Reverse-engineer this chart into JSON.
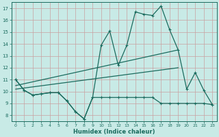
{
  "xlabel": "Humidex (Indice chaleur)",
  "bg_color": "#c8eae6",
  "grid_color": "#c8a0a0",
  "line_color": "#1a6b5e",
  "xlim": [
    -0.5,
    23.5
  ],
  "ylim": [
    7.5,
    17.5
  ],
  "xticks": [
    0,
    1,
    2,
    3,
    4,
    5,
    6,
    7,
    8,
    9,
    10,
    11,
    12,
    13,
    14,
    15,
    16,
    17,
    18,
    19,
    20,
    21,
    22,
    23
  ],
  "yticks": [
    8,
    9,
    10,
    11,
    12,
    13,
    14,
    15,
    16,
    17
  ],
  "line1_x": [
    0,
    1,
    2,
    3,
    4,
    5,
    6,
    7,
    8,
    9,
    10,
    11,
    12,
    13,
    14,
    15,
    16,
    17,
    18,
    19,
    20,
    21,
    22,
    23
  ],
  "line1_y": [
    11.0,
    10.1,
    9.7,
    9.8,
    9.9,
    9.9,
    9.2,
    8.3,
    7.7,
    9.5,
    13.9,
    15.1,
    12.2,
    13.9,
    16.7,
    16.5,
    16.4,
    17.2,
    15.2,
    13.5,
    10.2,
    11.6,
    10.1,
    8.9
  ],
  "line2_x": [
    0,
    1,
    2,
    3,
    4,
    5,
    6,
    7,
    8,
    9,
    10,
    11,
    12,
    13,
    14,
    15,
    16,
    17,
    18,
    19,
    20,
    21,
    22,
    23
  ],
  "line2_y": [
    11.0,
    10.1,
    9.7,
    9.8,
    9.9,
    9.9,
    9.2,
    8.3,
    7.7,
    9.5,
    9.5,
    9.5,
    9.5,
    9.5,
    9.5,
    9.5,
    9.5,
    9.0,
    9.0,
    9.0,
    9.0,
    9.0,
    9.0,
    8.9
  ],
  "line3_x": [
    0,
    19
  ],
  "line3_y": [
    10.5,
    13.5
  ],
  "line4_x": [
    0,
    19
  ],
  "line4_y": [
    10.2,
    12.0
  ]
}
